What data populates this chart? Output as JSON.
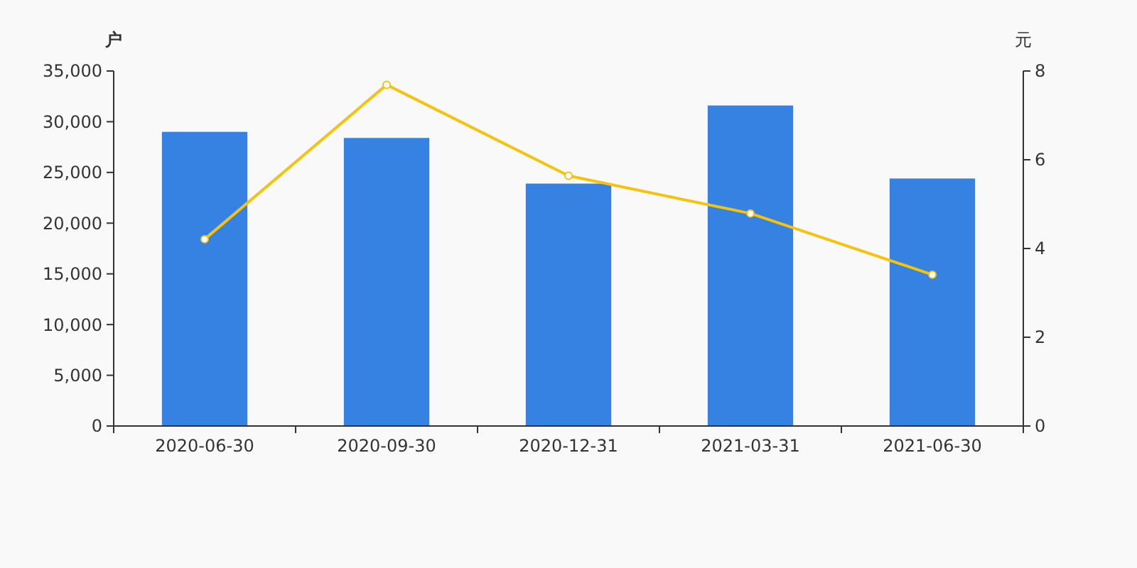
{
  "chart_data": {
    "type": "bar",
    "ylabel": "户",
    "y2label": "元",
    "categories": [
      "2020-06-30",
      "2020-09-30",
      "2020-12-31",
      "2021-03-31",
      "2021-06-30"
    ],
    "series": [
      {
        "color": "#3582e2",
        "values": [
          29000,
          28400,
          23900,
          31600,
          24400
        ]
      },
      {
        "type": "line",
        "axis": "y2",
        "color": "#f5c20e",
        "values": [
          4.21,
          7.69,
          5.64,
          4.79,
          3.41
        ]
      }
    ],
    "ylim": [
      0,
      35000
    ],
    "yticks": [
      {
        "value": 0,
        "label": "0"
      },
      {
        "value": 5000,
        "label": "5,000"
      },
      {
        "value": 10000,
        "label": "10,000"
      },
      {
        "value": 15000,
        "label": "15,000"
      },
      {
        "value": 20000,
        "label": "20,000"
      },
      {
        "value": 25000,
        "label": "25,000"
      },
      {
        "value": 30000,
        "label": "30,000"
      },
      {
        "value": 35000,
        "label": "35,000"
      }
    ],
    "y2lim": [
      0,
      8
    ],
    "y2ticks": [
      0,
      2,
      4,
      6,
      8
    ],
    "marker": "circle",
    "line_style": "solid",
    "grid": false
  }
}
